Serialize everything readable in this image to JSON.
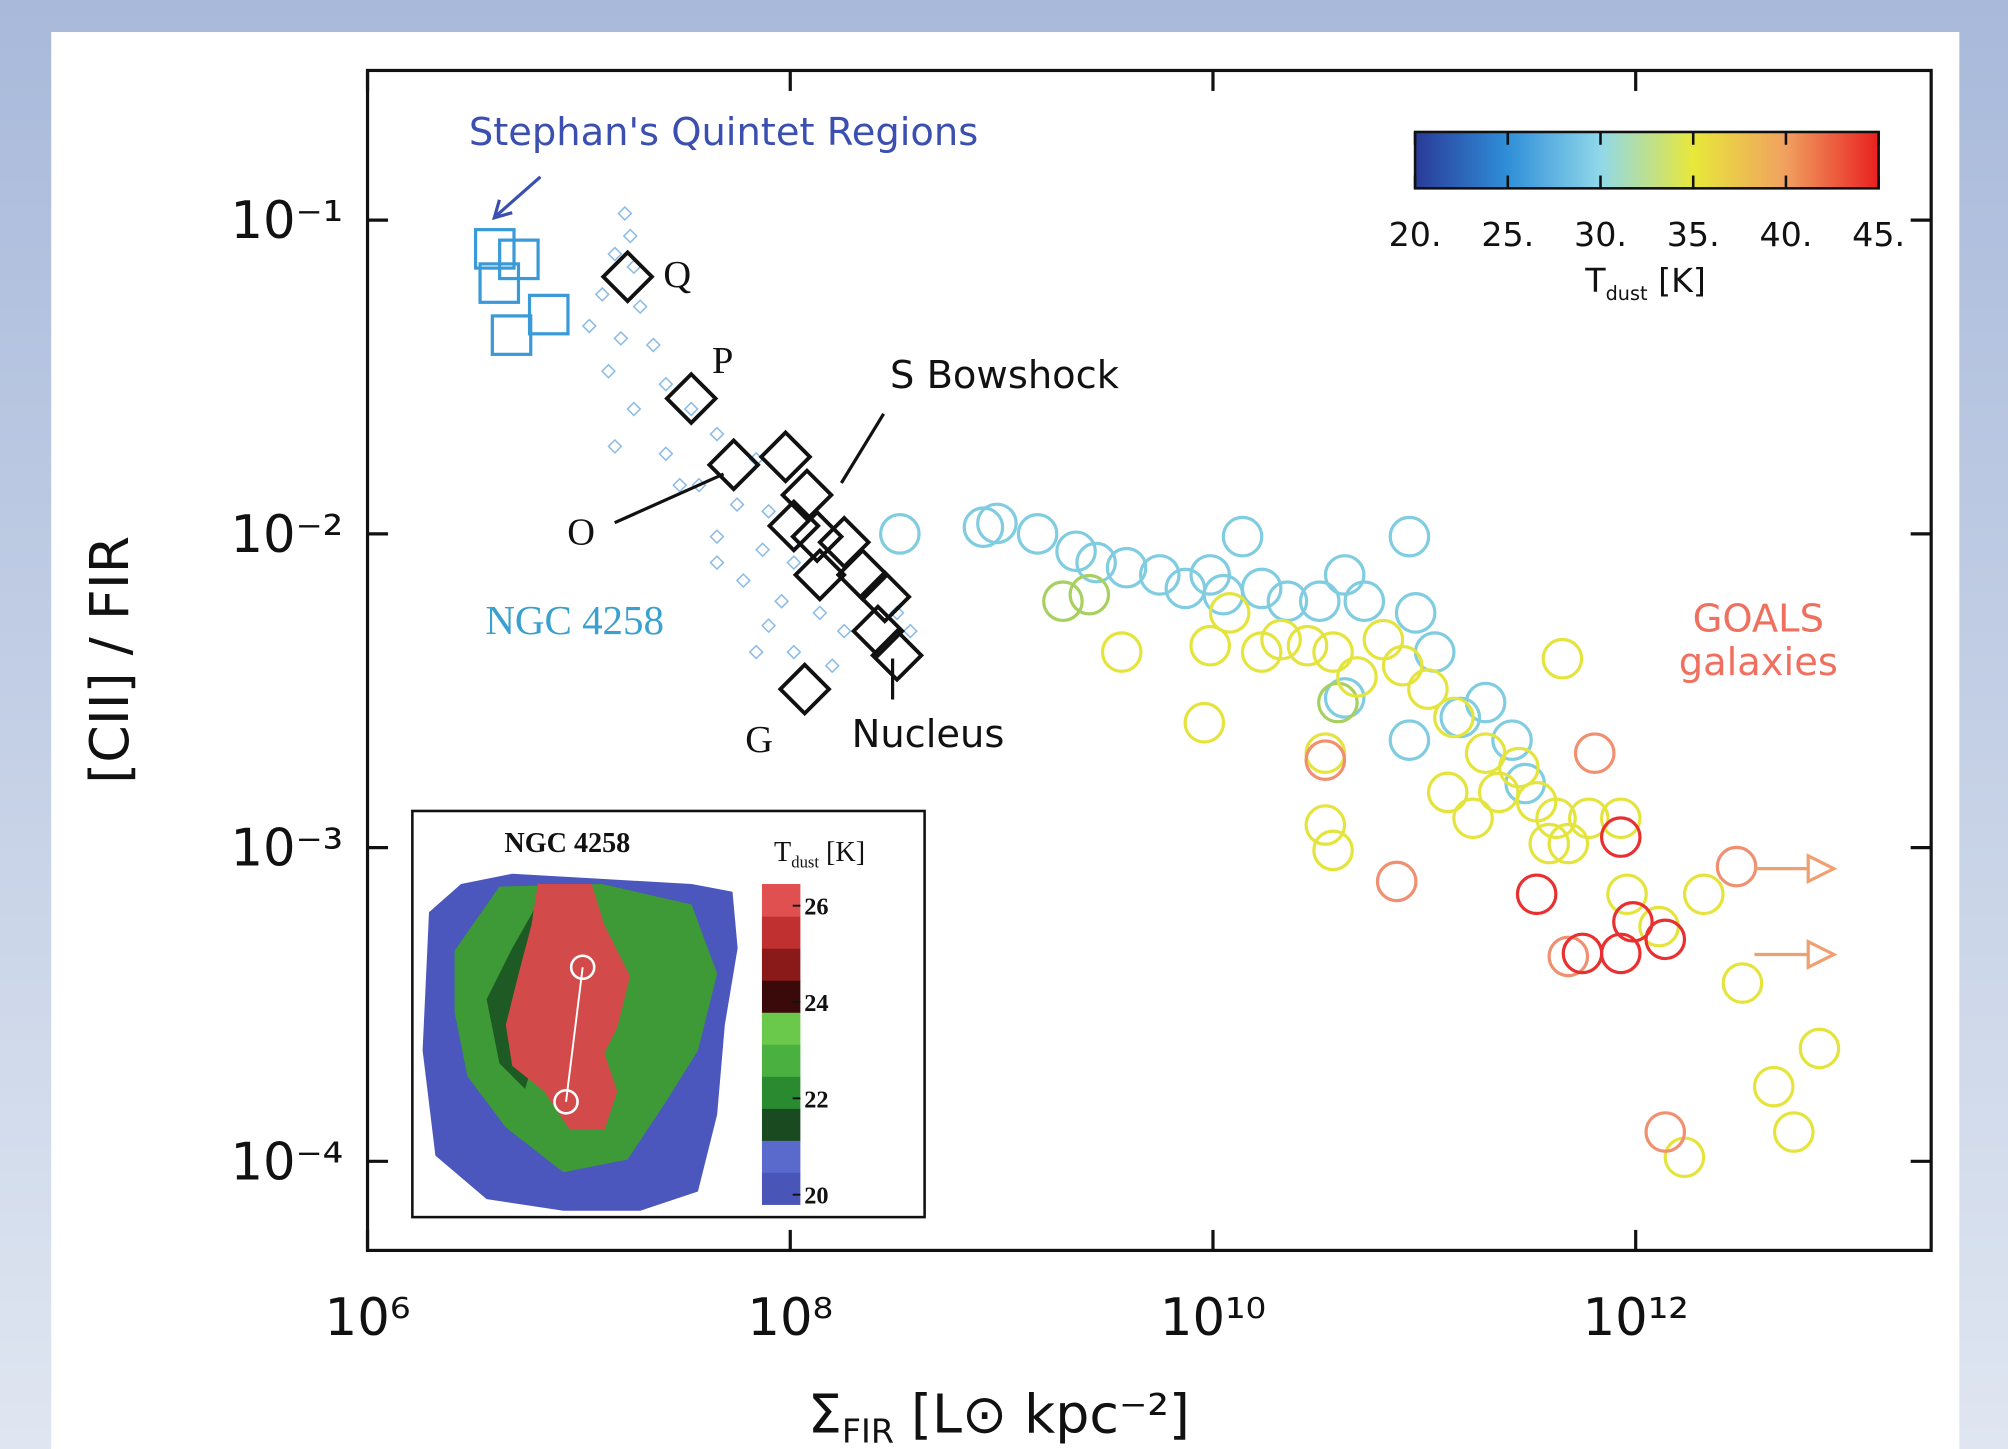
{
  "chart_data": {
    "type": "scatter",
    "y_label": "[CII] / FIR",
    "x_label": [
      "Σ",
      "FIR",
      " [L⊙ kpc⁻²]"
    ],
    "log_x": true,
    "log_y": true,
    "xlim": [
      1000000,
      25000000000000
    ],
    "ylim": [
      5.2e-05,
      0.3
    ],
    "xticks": [
      {
        "value": 1000000,
        "label": "10⁶"
      },
      {
        "value": 100000000,
        "label": "10⁸"
      },
      {
        "value": 10000000000,
        "label": "10¹⁰"
      },
      {
        "value": 1000000000000,
        "label": "10¹²"
      }
    ],
    "yticks": [
      {
        "value": 0.1,
        "label": "10⁻¹"
      },
      {
        "value": 0.01,
        "label": "10⁻²"
      },
      {
        "value": 0.001,
        "label": "10⁻³"
      },
      {
        "value": 0.0001,
        "label": "10⁻⁴"
      }
    ],
    "annotations": [
      "Stephan's Quintet Regions",
      "Q",
      "P",
      "O",
      "G",
      "S Bowshock",
      "Nucleus",
      "NGC 4258",
      "GOALS",
      "galaxies"
    ],
    "series": [
      {
        "marker": "square",
        "color": "#3a9ad8",
        "x": [
          4000000,
          5200000,
          4200000,
          7200000,
          4800000
        ],
        "y": [
          0.081,
          0.075,
          0.063,
          0.05,
          0.043
        ]
      },
      {
        "marker": "small-diamond",
        "color": "#8cbce6",
        "x": [
          16500000,
          17500000,
          14800000,
          18200000,
          12900000,
          19500000,
          11200000,
          15800000,
          22500000,
          13800000,
          25800000,
          18200000,
          34000000,
          14800000,
          45000000,
          25800000,
          69000000,
          37000000,
          56000000,
          79000000,
          45000000,
          74000000,
          104000000,
          60000000,
          91000000,
          138000000,
          79000000,
          180000000,
          104000000,
          320000000,
          158000000,
          69000000,
          370000000,
          45000000,
          30000000
        ],
        "y": [
          0.105,
          0.089,
          0.078,
          0.071,
          0.058,
          0.053,
          0.046,
          0.042,
          0.04,
          0.033,
          0.03,
          0.025,
          0.025,
          0.019,
          0.0208,
          0.018,
          0.0173,
          0.0143,
          0.0124,
          0.0118,
          0.0098,
          0.0089,
          0.0081,
          0.0071,
          0.0061,
          0.0056,
          0.0051,
          0.0049,
          0.0042,
          0.0056,
          0.0038,
          0.0042,
          0.0049,
          0.0081,
          0.0143
        ]
      },
      {
        "marker": "diamond",
        "color": "#111111",
        "x": [
          17000000,
          34000000,
          54000000,
          95000000,
          120000000,
          104000000,
          134000000,
          180000000,
          138000000,
          220000000,
          280000000,
          260000000,
          320000000,
          117000000
        ],
        "y": [
          0.066,
          0.027,
          0.0166,
          0.0176,
          0.0133,
          0.0106,
          0.0098,
          0.0094,
          0.0074,
          0.0074,
          0.0063,
          0.0049,
          0.0041,
          0.0032
        ]
      },
      {
        "marker": "circle",
        "color": "#80cce0",
        "x": [
          330000000,
          820000000,
          950000000,
          1480000000,
          2250000000,
          2800000000,
          3900000000,
          5600000000,
          7400000000,
          9700000000,
          13800000000,
          17000000000,
          22500000000,
          32000000000,
          42000000000,
          52000000000,
          85000000000,
          91000000000,
          112000000000,
          42000000000,
          85000000000,
          148000000000,
          195000000000,
          260000000000,
          11200000000,
          300000000000
        ],
        "y": [
          0.01,
          0.0105,
          0.0108,
          0.01,
          0.0088,
          0.0081,
          0.0078,
          0.0074,
          0.0067,
          0.0074,
          0.0098,
          0.0067,
          0.0061,
          0.0061,
          0.0074,
          0.0061,
          0.0098,
          0.0056,
          0.0042,
          0.003,
          0.0022,
          0.0026,
          0.0029,
          0.0022,
          0.0064,
          0.0016
        ]
      },
      {
        "marker": "circle",
        "color": "#a8d060",
        "x": [
          1950000000,
          2600000000,
          39000000000
        ],
        "y": [
          0.0061,
          0.0064,
          0.0029
        ]
      },
      {
        "marker": "circle",
        "color": "#e4e43c",
        "x": [
          3700000000,
          9700000000,
          12000000000,
          17000000000,
          21000000000,
          28000000000,
          37000000000,
          48000000000,
          64000000000,
          79000000000,
          104000000000,
          138000000000,
          195000000000,
          225000000000,
          280000000000,
          340000000000,
          420000000000,
          480000000000,
          600000000000,
          850000000000,
          910000000000,
          390000000000,
          170000000000,
          129000000000,
          34000000000,
          37000000000,
          34000000000,
          9100000000,
          1290000000000,
          2100000000000,
          3200000000000,
          4500000000000,
          5600000000000,
          7400000000000,
          1700000000000,
          450000000000
        ],
        "y": [
          0.0042,
          0.0044,
          0.0056,
          0.0042,
          0.0046,
          0.0044,
          0.0042,
          0.0035,
          0.0046,
          0.0038,
          0.0032,
          0.0026,
          0.002,
          0.0015,
          0.0018,
          0.0014,
          0.00124,
          0.00103,
          0.00124,
          0.00124,
          0.00071,
          0.00103,
          0.00124,
          0.0015,
          0.00118,
          0.00098,
          0.002,
          0.0025,
          0.00056,
          0.00071,
          0.00037,
          0.000173,
          0.000124,
          0.000229,
          0.000103,
          0.004
        ]
      },
      {
        "marker": "circle",
        "color": "#f09070",
        "x": [
          34000000000,
          640000000000,
          74000000000,
          3000000000000,
          1380000000000,
          480000000000
        ],
        "y": [
          0.0019,
          0.002,
          0.00078,
          0.00087,
          0.000124,
          0.00045
        ]
      },
      {
        "marker": "circle",
        "color": "#e83030",
        "x": [
          340000000000,
          560000000000,
          850000000000,
          970000000000,
          1380000000000,
          850000000000
        ],
        "y": [
          0.00071,
          0.00046,
          0.00046,
          0.00058,
          0.00051,
          0.00108
        ]
      }
    ],
    "colorbar": {
      "label": [
        "T",
        "dust",
        " [K]"
      ],
      "lim": [
        20,
        45
      ],
      "ticks": [
        {
          "value": 20,
          "label": "20."
        },
        {
          "value": 25,
          "label": "25."
        },
        {
          "value": 30,
          "label": "30."
        },
        {
          "value": 35,
          "label": "35."
        },
        {
          "value": 40,
          "label": "40."
        },
        {
          "value": 45,
          "label": "45."
        }
      ],
      "colors": [
        "#2a3a98",
        "#2f8fd8",
        "#90d8ea",
        "#e8e83a",
        "#f0a060",
        "#e82020"
      ]
    },
    "inset": {
      "title": "NGC 4258",
      "colorbar": {
        "label": [
          "T",
          "dust",
          " [K]"
        ],
        "lim": [
          19.8,
          26.45
        ],
        "ticks": [
          20,
          22,
          24,
          26
        ],
        "colors": [
          "#4a55b8",
          "#5a6acc",
          "#1a4a20",
          "#2a8a30",
          "#4ab040",
          "#6ac84a",
          "#3a0a0a",
          "#8a1a1a",
          "#c03030",
          "#e05050"
        ]
      }
    }
  }
}
